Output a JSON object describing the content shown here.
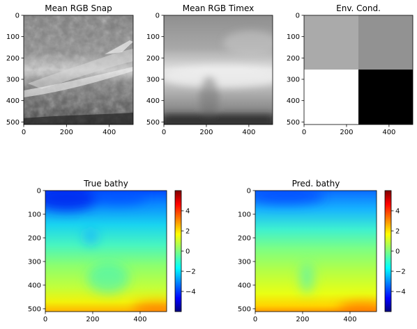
{
  "chart_data": [
    {
      "type": "heatmap",
      "title": "Mean RGB Snap",
      "colormap": "gray",
      "xlim": [
        0,
        512
      ],
      "ylim": [
        512,
        0
      ],
      "xticks": [
        "0",
        "200",
        "400"
      ],
      "yticks": [
        "0",
        "100",
        "200",
        "300",
        "400",
        "500"
      ]
    },
    {
      "type": "heatmap",
      "title": "Mean RGB Timex",
      "colormap": "gray",
      "xlim": [
        0,
        512
      ],
      "ylim": [
        512,
        0
      ],
      "xticks": [
        "0",
        "200",
        "400"
      ],
      "yticks": [
        "0",
        "100",
        "200",
        "300",
        "400",
        "500"
      ]
    },
    {
      "type": "heatmap",
      "title": "Env. Cond.",
      "colormap": "gray",
      "xlim": [
        0,
        512
      ],
      "ylim": [
        512,
        0
      ],
      "xticks": [
        "0",
        "200",
        "400"
      ],
      "yticks": [
        "0",
        "100",
        "200",
        "300",
        "400",
        "500"
      ],
      "quadrants": [
        [
          "#aaaaaa",
          "#929292"
        ],
        [
          "#ffffff",
          "#000000"
        ]
      ]
    },
    {
      "type": "heatmap",
      "title": "True bathy",
      "colormap": "jet",
      "xlim": [
        0,
        512
      ],
      "ylim": [
        512,
        0
      ],
      "xticks": [
        "0",
        "200",
        "400"
      ],
      "yticks": [
        "0",
        "100",
        "200",
        "300",
        "400",
        "500"
      ],
      "colorbar": {
        "range": [
          -6,
          6
        ],
        "ticks": [
          "4",
          "2",
          "0",
          "−2",
          "−4"
        ]
      }
    },
    {
      "type": "heatmap",
      "title": "Pred. bathy",
      "colormap": "jet",
      "xlim": [
        0,
        512
      ],
      "ylim": [
        512,
        0
      ],
      "xticks": [
        "0",
        "200",
        "400"
      ],
      "yticks": [
        "0",
        "100",
        "200",
        "300",
        "400",
        "500"
      ],
      "colorbar": {
        "range": [
          -6,
          6
        ],
        "ticks": [
          "4",
          "2",
          "0",
          "−2",
          "−4"
        ]
      }
    }
  ]
}
